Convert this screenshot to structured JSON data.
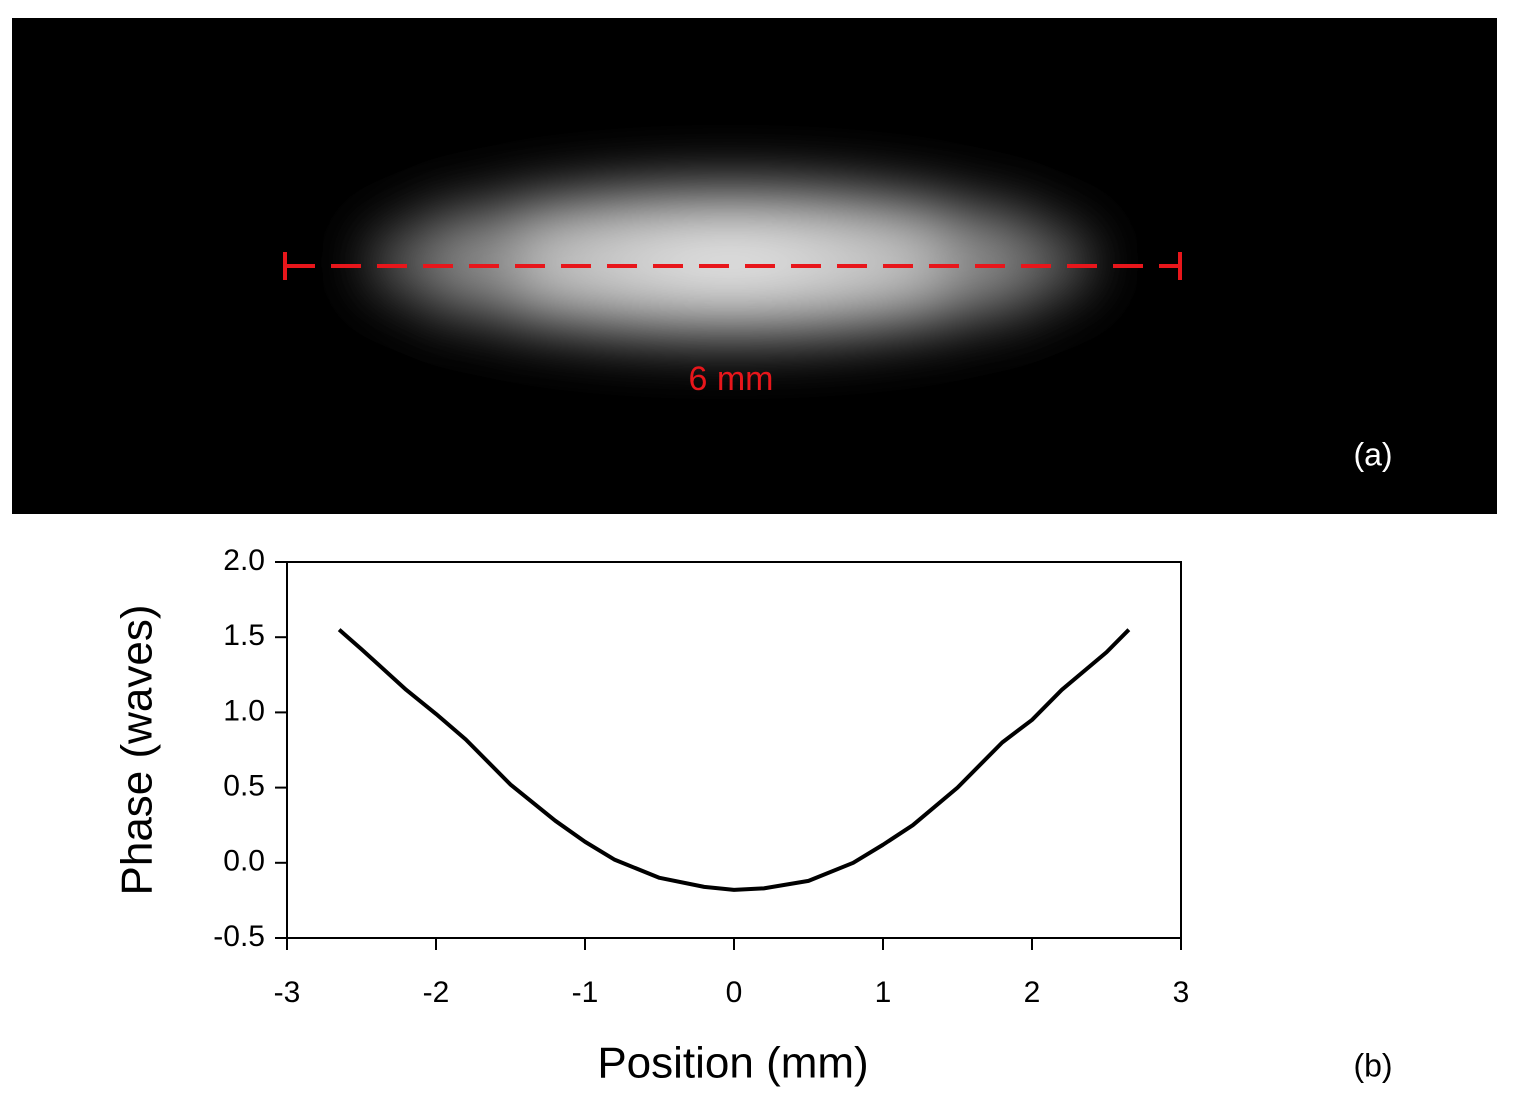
{
  "image": {
    "scale_label": "6 mm",
    "panel_label": "(a)"
  },
  "chart_data": {
    "type": "line",
    "x": [
      -2.65,
      -2.5,
      -2.2,
      -2.0,
      -1.8,
      -1.5,
      -1.2,
      -1.0,
      -0.8,
      -0.5,
      -0.2,
      0,
      0.2,
      0.5,
      0.8,
      1.0,
      1.2,
      1.5,
      1.8,
      2.0,
      2.2,
      2.5,
      2.65
    ],
    "series": [
      {
        "color": "#000000",
        "values": [
          1.55,
          1.42,
          1.15,
          0.99,
          0.82,
          0.52,
          0.28,
          0.14,
          0.02,
          -0.1,
          -0.16,
          -0.18,
          -0.17,
          -0.12,
          0.0,
          0.12,
          0.25,
          0.5,
          0.8,
          0.95,
          1.15,
          1.4,
          1.55
        ]
      }
    ],
    "xlabel": "Position (mm)",
    "ylabel": "Phase (waves)",
    "xlim": [
      -3,
      3
    ],
    "xticks": [
      -3,
      -2,
      -1,
      0,
      1,
      2,
      3
    ],
    "ylim": [
      -0.5,
      2.0
    ],
    "yticks": [
      -0.5,
      {
        "value": 0,
        "label": "0.0"
      },
      0.5,
      {
        "value": 1,
        "label": "1.0"
      },
      1.5,
      {
        "value": 2,
        "label": "2.0"
      }
    ],
    "panel_label": "(b)"
  }
}
